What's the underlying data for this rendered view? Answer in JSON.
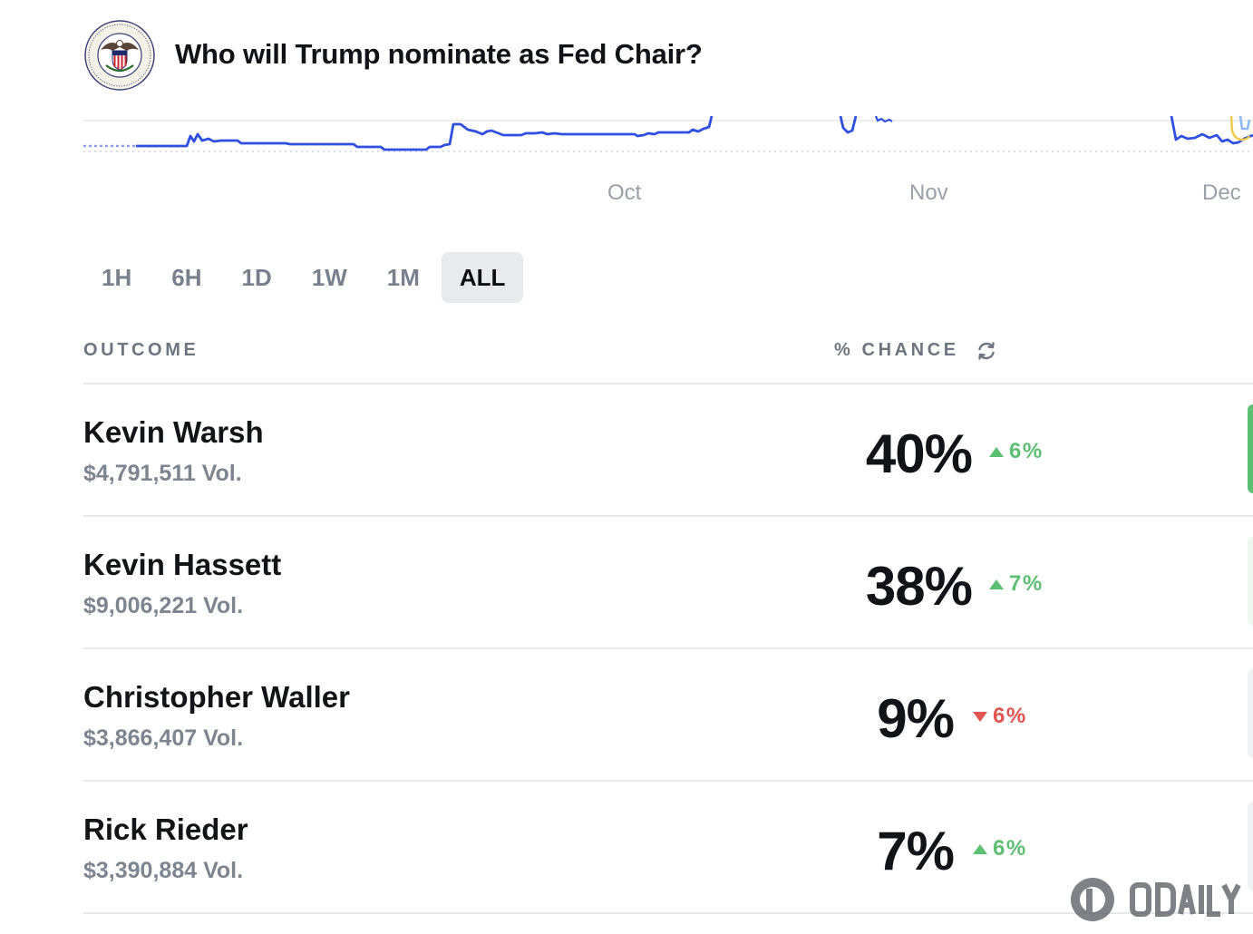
{
  "header": {
    "title": "Who will Trump nominate as Fed Chair?",
    "logo_icon": "federal-reserve-seal-icon"
  },
  "chart": {
    "x_ticks": [
      "Oct",
      "Nov",
      "Dec"
    ],
    "line_color": "#2f4fe0"
  },
  "time_ranges": [
    {
      "label": "1H",
      "active": false
    },
    {
      "label": "6H",
      "active": false
    },
    {
      "label": "1D",
      "active": false
    },
    {
      "label": "1W",
      "active": false
    },
    {
      "label": "1M",
      "active": false
    },
    {
      "label": "ALL",
      "active": true
    }
  ],
  "table": {
    "outcome_header": "OUTCOME",
    "chance_header": "% CHANCE",
    "refresh_icon": "refresh-icon",
    "rows": [
      {
        "name": "Kevin Warsh",
        "volume": "$4,791,511 Vol.",
        "chance": "40%",
        "change": "6%",
        "direction": "up"
      },
      {
        "name": "Kevin Hassett",
        "volume": "$9,006,221 Vol.",
        "chance": "38%",
        "change": "7%",
        "direction": "up"
      },
      {
        "name": "Christopher Waller",
        "volume": "$3,866,407 Vol.",
        "chance": "9%",
        "change": "6%",
        "direction": "down"
      },
      {
        "name": "Rick Rieder",
        "volume": "$3,390,884 Vol.",
        "chance": "7%",
        "change": "6%",
        "direction": "up"
      }
    ]
  },
  "colors": {
    "up": "#5dbf72",
    "down": "#e0554f",
    "accent_bar": "#5dbf72"
  },
  "watermark": {
    "text": "ODAILY",
    "icon": "odaily-logo-icon"
  }
}
